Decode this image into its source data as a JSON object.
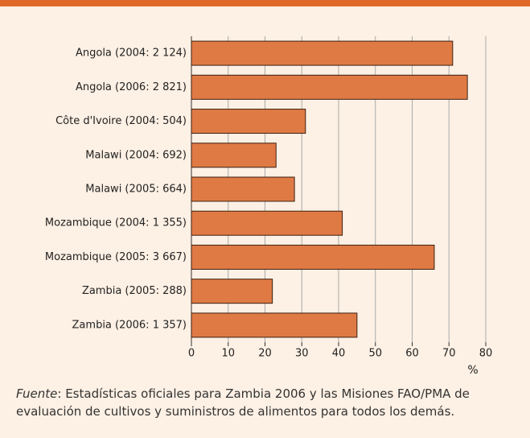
{
  "chart_data": {
    "type": "bar",
    "orientation": "horizontal",
    "categories": [
      "Angola (2004: 2 124)",
      "Angola (2006: 2 821)",
      "Côte d'Ivoire (2004: 504)",
      "Malawi (2004: 692)",
      "Malawi (2005: 664)",
      "Mozambique (2004: 1 355)",
      "Mozambique (2005: 3 667)",
      "Zambia (2005: 288)",
      "Zambia (2006: 1 357)"
    ],
    "values": [
      71,
      75,
      31,
      23,
      28,
      41,
      66,
      22,
      45
    ],
    "color": "#e07a45",
    "xlim": [
      0,
      80
    ],
    "xticks": [
      0,
      10,
      20,
      30,
      40,
      50,
      60,
      70,
      80
    ],
    "xlabel": "%",
    "grid": true,
    "source_label": "Fuente",
    "source": ": Estadísticas oficiales para Zambia 2006 y las Misiones FAO/PMA de evaluación de cultivos y suministros de alimentos para todos los demás."
  }
}
